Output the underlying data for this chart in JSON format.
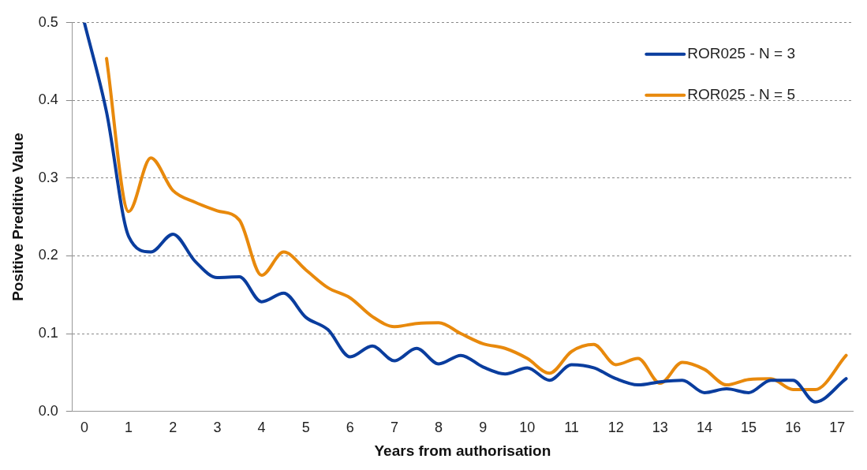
{
  "chart_data": {
    "type": "line",
    "xlabel": "Years from authorisation",
    "ylabel": "Positive Preditive Value",
    "xlim": [
      -0.27,
      17.35
    ],
    "xticks": [
      0,
      1,
      2,
      3,
      4,
      5,
      6,
      7,
      8,
      9,
      10,
      11,
      12,
      13,
      14,
      15,
      16,
      17
    ],
    "ylim": [
      0,
      0.5
    ],
    "yticks": [
      {
        "value": 0,
        "label": "0.0"
      },
      {
        "value": 0.1,
        "label": "0.1"
      },
      {
        "value": 0.2,
        "label": "0.2"
      },
      {
        "value": 0.3,
        "label": "0.3"
      },
      {
        "value": 0.4,
        "label": "0.4"
      },
      {
        "value": 0.5,
        "label": "0.5"
      }
    ],
    "grid": "y",
    "legend": "top right",
    "series": [
      {
        "name": "ROR025 - N = 3",
        "color": "#0a3d9e",
        "x": [
          0,
          0.5,
          1,
          1.5,
          2,
          2.5,
          3,
          3.5,
          4,
          4.5,
          5,
          5.5,
          6,
          6.5,
          7,
          7.5,
          8,
          8.5,
          9,
          9.5,
          10,
          10.5,
          11,
          11.5,
          12,
          12.5,
          13,
          13.5,
          14,
          14.5,
          15,
          15.5,
          16,
          16.5,
          17.2
        ],
        "values": [
          0.5,
          0.385,
          0.225,
          0.205,
          0.228,
          0.193,
          0.172,
          0.173,
          0.141,
          0.152,
          0.121,
          0.105,
          0.07,
          0.084,
          0.065,
          0.081,
          0.061,
          0.072,
          0.057,
          0.048,
          0.056,
          0.04,
          0.06,
          0.056,
          0.042,
          0.034,
          0.038,
          0.04,
          0.024,
          0.029,
          0.024,
          0.04,
          0.04,
          0.012,
          0.042
        ]
      },
      {
        "name": "ROR025 - N = 5",
        "color": "#e8890c",
        "x": [
          0.5,
          1,
          1.5,
          2,
          2.5,
          3,
          3.5,
          4,
          4.5,
          5,
          5.5,
          6,
          6.5,
          7,
          7.5,
          8,
          8.5,
          9,
          9.5,
          10,
          10.5,
          11,
          11.5,
          12,
          12.5,
          13,
          13.5,
          14,
          14.5,
          15,
          15.5,
          16,
          16.5,
          17.2
        ],
        "values": [
          0.454,
          0.257,
          0.326,
          0.284,
          0.269,
          0.258,
          0.246,
          0.175,
          0.205,
          0.182,
          0.159,
          0.146,
          0.122,
          0.109,
          0.113,
          0.114,
          0.1,
          0.087,
          0.081,
          0.068,
          0.049,
          0.077,
          0.086,
          0.06,
          0.068,
          0.036,
          0.063,
          0.054,
          0.034,
          0.041,
          0.042,
          0.028,
          0.028,
          0.072
        ]
      }
    ]
  }
}
